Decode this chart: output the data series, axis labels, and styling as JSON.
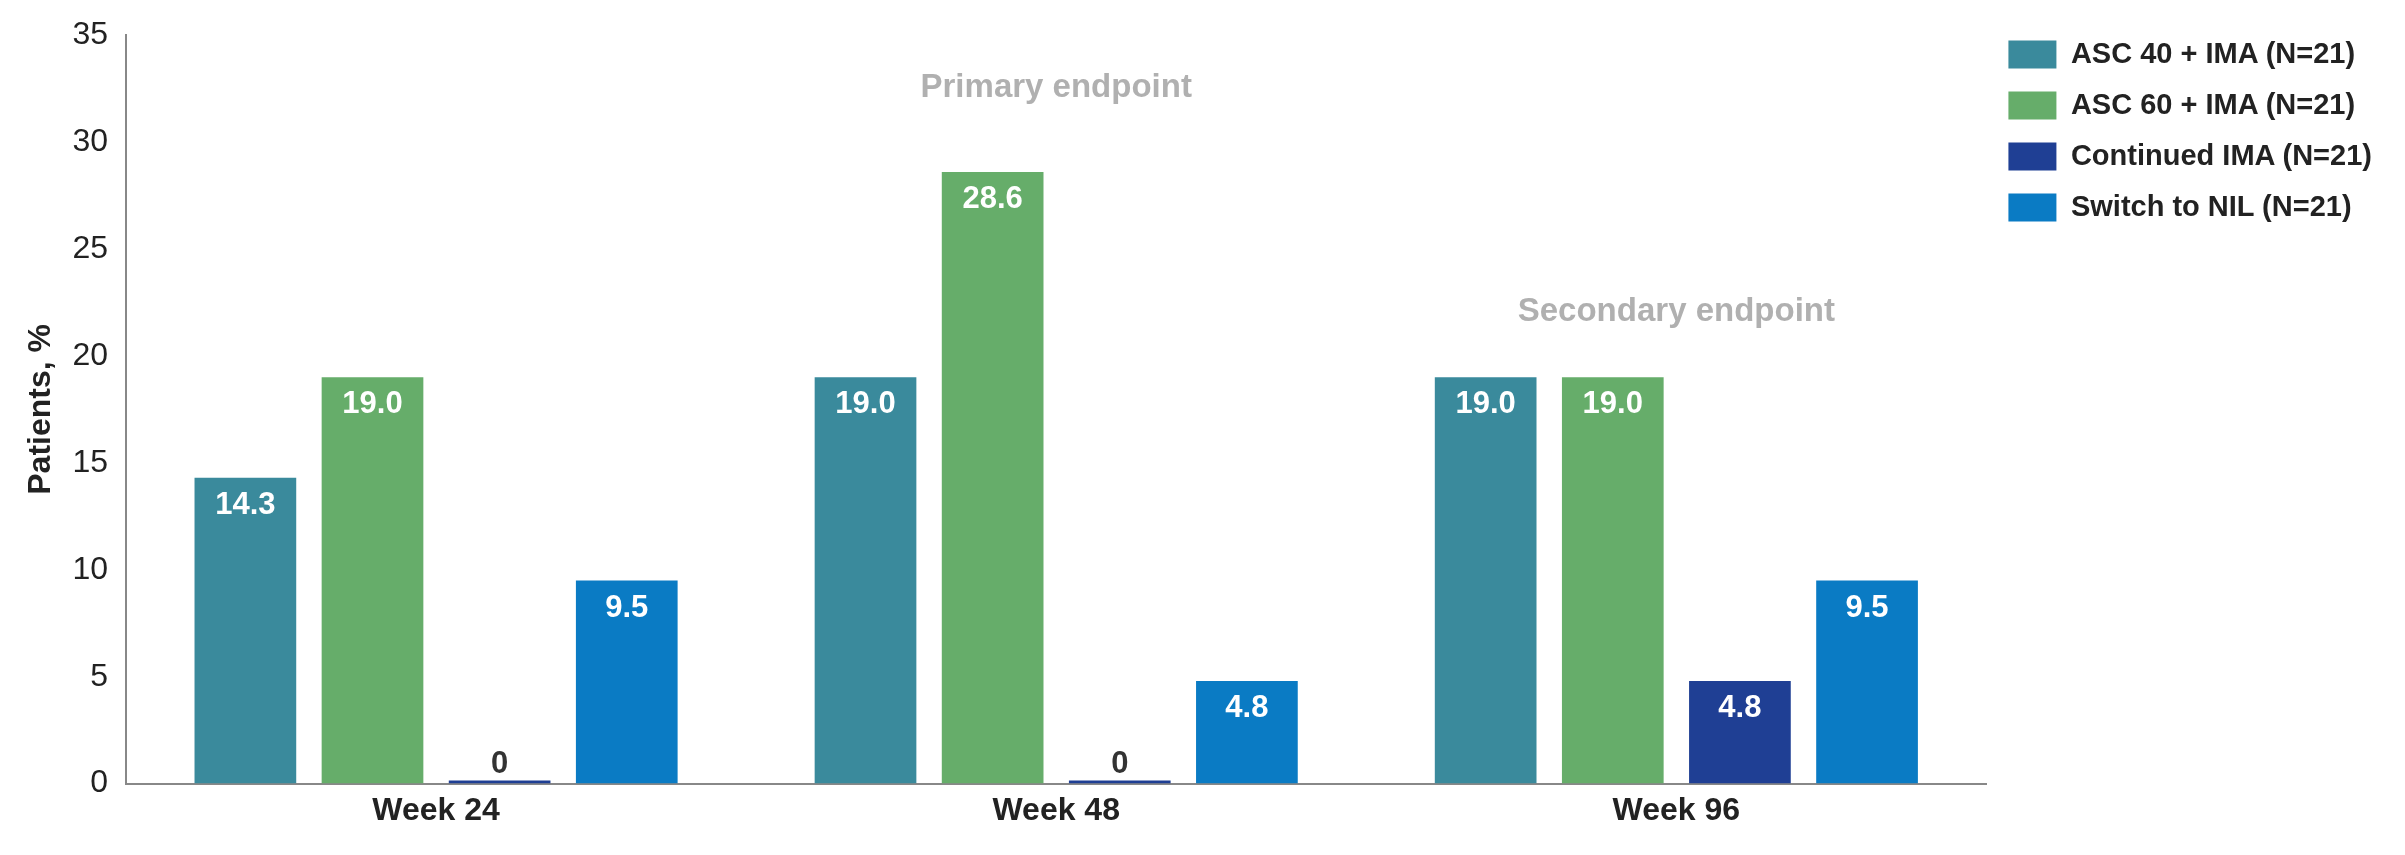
{
  "chart_data": {
    "type": "bar",
    "ylabel": "Patients, %",
    "categories": [
      "Week 24",
      "Week 48",
      "Week 96"
    ],
    "series": [
      {
        "name": "ASC 40 + IMA (N=21)",
        "color": "#3a8a9c",
        "values": [
          14.3,
          19.0,
          19.0
        ],
        "value_labels": [
          "14.3",
          "19.0",
          "19.0"
        ]
      },
      {
        "name": "ASC 60 + IMA (N=21)",
        "color": "#66ad6a",
        "values": [
          19.0,
          28.6,
          19.0
        ],
        "value_labels": [
          "19.0",
          "28.6",
          "19.0"
        ]
      },
      {
        "name": "Continued IMA (N=21)",
        "color": "#1f3f94",
        "values": [
          0,
          0,
          4.8
        ],
        "value_labels": [
          "0",
          "0",
          "4.8"
        ]
      },
      {
        "name": "Switch to NIL (N=21)",
        "color": "#0a7bc4",
        "values": [
          9.5,
          4.8,
          9.5
        ],
        "value_labels": [
          "9.5",
          "4.8",
          "9.5"
        ]
      }
    ],
    "ylim": [
      0,
      35
    ],
    "yticks": [
      0,
      5,
      10,
      15,
      20,
      25,
      30,
      35
    ],
    "grid": false,
    "legend": "top right",
    "annotations": [
      "Primary endpoint",
      "Secondary endpoint"
    ]
  }
}
